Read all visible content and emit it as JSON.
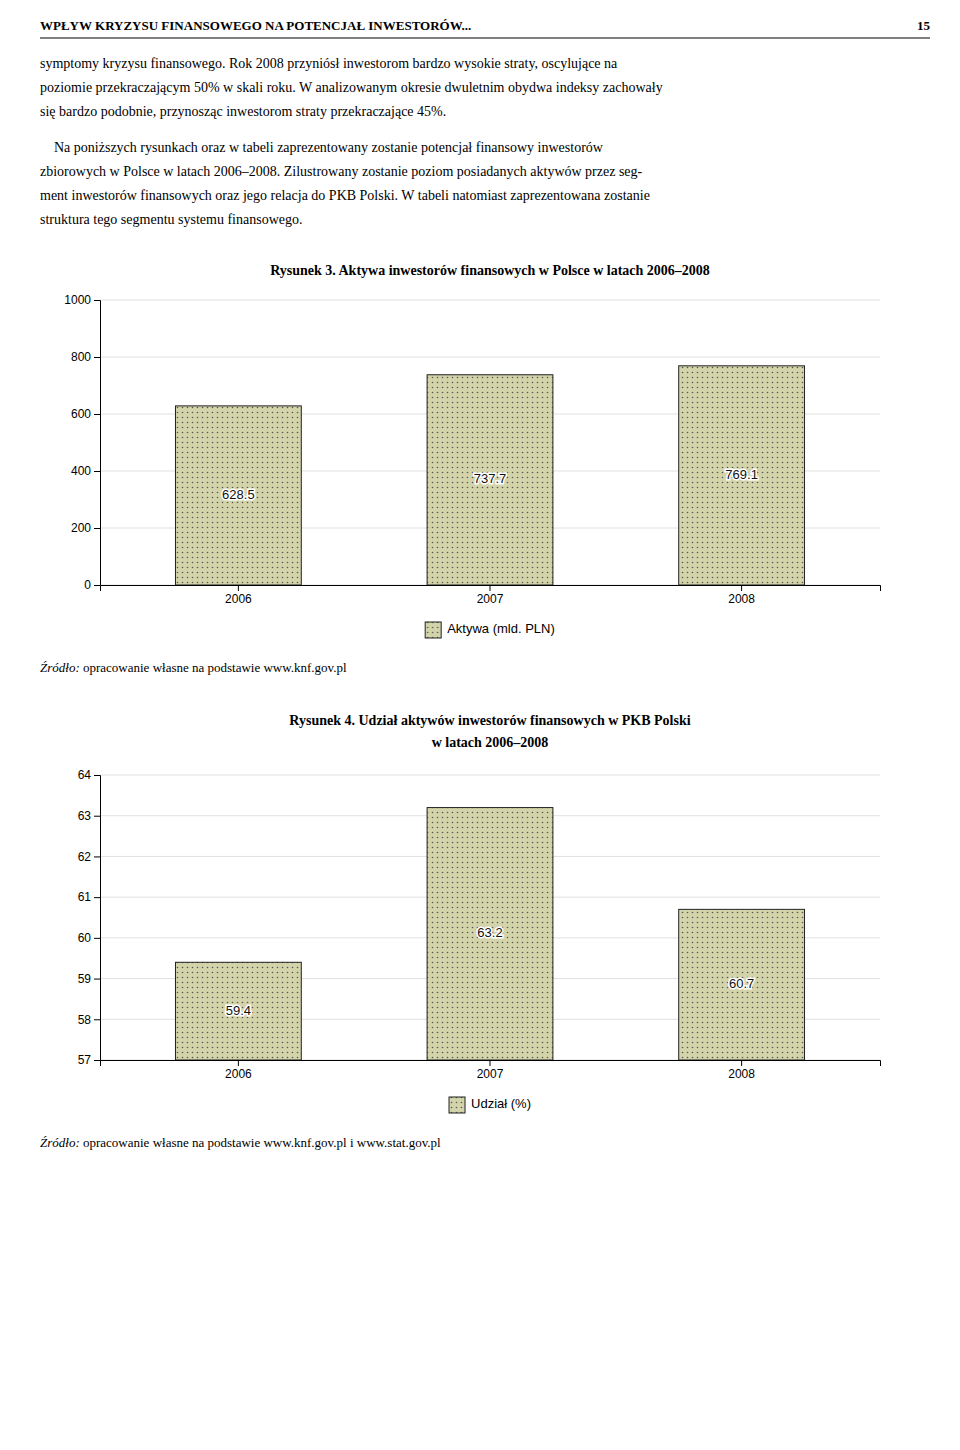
{
  "page_title": "WPŁYW KRYZYSU FINANSOWEGO NA POTENCJAŁ INWESTORÓW...",
  "page_number": "15",
  "paragraph1_lines": [
    "symptomy kryzysu finansowego. Rok 2008 przyniósł inwestorom bardzo wysokie straty, oscylujące na",
    "poziomie przekraczającym 50% w skali roku. W analizowanym okresie dwuletnim obydwa indeksy zachowały",
    "się bardzo podobnie, przynosząc inwestorom straty przekraczające 45%."
  ],
  "paragraph2_lines": [
    "    Na poniższych rysunkach oraz w tabeli zaprezentowany zostanie potencjał finansowy inwestorów",
    "zbiorowych w Polsce w latach 2006–2008. Zilustrowany zostanie poziom posiadanych aktywów przez seg-",
    "ment inwestorów finansowych oraz jego relacja do PKB Polski. W tabeli natomiast zaprezentowana zostanie",
    "struktura tego segmentu systemu finansowego."
  ],
  "chart_data": [
    {
      "type": "bar",
      "title": "Rysunek 3. Aktywa inwestorów finansowych w Polsce w latach 2006–2008",
      "categories": [
        "2006",
        "2007",
        "2008"
      ],
      "series": [
        {
          "name": "Aktywa (mld. PLN)",
          "color": "#d4d4aa",
          "values": [
            628.5,
            737.7,
            769.1
          ]
        }
      ],
      "ylim": [
        0,
        1000
      ],
      "yticks": [
        0,
        200,
        400,
        600,
        800,
        1000
      ],
      "grid": true,
      "legend": "bottom",
      "data_labels": true,
      "source_label": "Źródło:",
      "source": " opracowanie własne na podstawie www.knf.gov.pl"
    },
    {
      "type": "bar",
      "title": [
        "Rysunek 4. Udział aktywów inwestorów finansowych w PKB Polski",
        "w latach 2006–2008"
      ],
      "categories": [
        "2006",
        "2007",
        "2008"
      ],
      "series": [
        {
          "name": "Udział (%)",
          "color": "#d4d4aa",
          "values": [
            59.4,
            63.2,
            60.7
          ]
        }
      ],
      "ylim": [
        57,
        64
      ],
      "yticks": [
        57,
        58,
        59,
        60,
        61,
        62,
        63,
        64
      ],
      "grid": true,
      "legend": "bottom",
      "data_labels": true,
      "source_label": "Źródło:",
      "source": " opracowanie własne na podstawie www.knf.gov.pl i www.stat.gov.pl"
    }
  ]
}
